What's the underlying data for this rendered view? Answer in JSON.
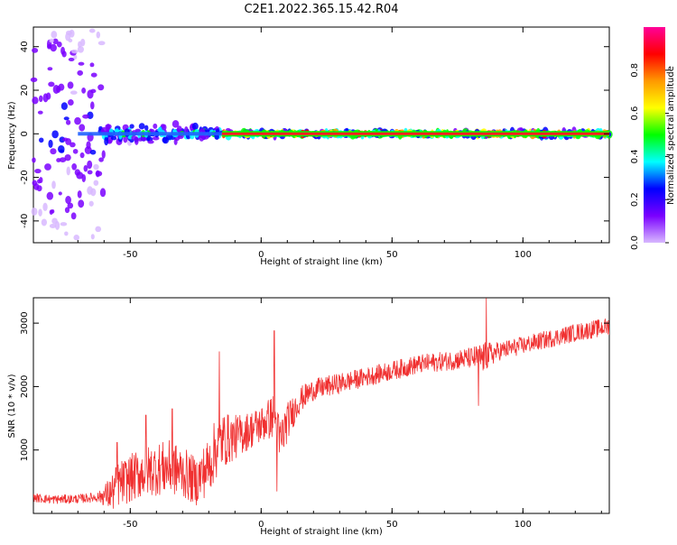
{
  "figure": {
    "title": "C2E1.2022.365.15.42.R04"
  },
  "colorbar": {
    "label": "Normalized spectral amplitude",
    "ticks": [
      "0.0",
      "0.2",
      "0.4",
      "0.6",
      "0.8"
    ]
  },
  "chart_data": [
    {
      "type": "heatmap",
      "xlabel": "Height of straight line (km)",
      "ylabel": "Frequency (Hz)",
      "xlim": [
        -87,
        133
      ],
      "ylim": [
        -50,
        49
      ],
      "xticks": [
        "-50",
        "0",
        "50",
        "100"
      ],
      "yticks": [
        "-40",
        "-20",
        "0",
        "20",
        "40"
      ],
      "colormap": [
        "#d8b8ff",
        "#7a00ff",
        "#0000ff",
        "#00ffff",
        "#00ff00",
        "#ffff00",
        "#ff9900",
        "#ff0000",
        "#ff0099"
      ],
      "bands": [
        {
          "x0": -87,
          "x1": -60,
          "halfwidth_hz": 49,
          "peak_amplitude": 0.25
        },
        {
          "x0": -60,
          "x1": -25,
          "halfwidth_hz": 5,
          "peak_amplitude": 0.5
        },
        {
          "x0": -25,
          "x1": -15,
          "halfwidth_hz": 3,
          "peak_amplitude": 0.6
        },
        {
          "x0": -15,
          "x1": 133,
          "halfwidth_hz": 1.5,
          "peak_amplitude": 0.95
        }
      ]
    },
    {
      "type": "line",
      "xlabel": "Height of straight line (km)",
      "ylabel": "SNR (10 * v/v)",
      "xlim": [
        -87,
        133
      ],
      "ylim": [
        0,
        3400
      ],
      "xticks": [
        "-50",
        "0",
        "50",
        "100"
      ],
      "yticks": [
        "1000",
        "2000",
        "3000"
      ],
      "color": "#f03030",
      "x": [
        -87,
        -80,
        -70,
        -62,
        -57,
        -55,
        -50,
        -45,
        -40,
        -35,
        -30,
        -25,
        -20,
        -17,
        -15,
        -10,
        -5,
        0,
        5,
        7,
        10,
        15,
        20,
        30,
        40,
        50,
        60,
        70,
        80,
        85,
        90,
        100,
        110,
        120,
        133
      ],
      "y": [
        250,
        220,
        230,
        260,
        320,
        450,
        550,
        650,
        700,
        720,
        650,
        500,
        750,
        1050,
        1150,
        1200,
        1300,
        1400,
        1550,
        1100,
        1450,
        1800,
        1950,
        2050,
        2150,
        2250,
        2350,
        2400,
        2450,
        2450,
        2550,
        2650,
        2750,
        2850,
        2950
      ],
      "noise_amplitude": [
        70,
        70,
        70,
        80,
        300,
        350,
        380,
        400,
        420,
        430,
        400,
        380,
        450,
        500,
        450,
        350,
        300,
        300,
        350,
        450,
        300,
        200,
        170,
        160,
        150,
        150,
        150,
        150,
        170,
        250,
        150,
        140,
        140,
        140,
        140
      ],
      "spikes": [
        {
          "x": -55,
          "y": 1120
        },
        {
          "x": -44,
          "y": 1550
        },
        {
          "x": -34,
          "y": 1650
        },
        {
          "x": -16,
          "y": 2550
        },
        {
          "x": 5,
          "y": 2880
        },
        {
          "x": 6,
          "y": 350
        },
        {
          "x": 86,
          "y": 3390
        },
        {
          "x": 83,
          "y": 1700
        }
      ]
    }
  ]
}
